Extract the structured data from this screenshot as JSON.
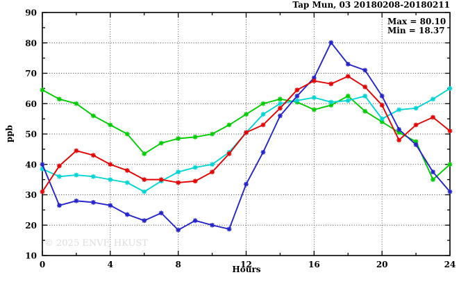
{
  "title": "Tap Mun, 03 20180208-20180211",
  "stats": {
    "max_label": "Max = 80.10",
    "min_label": "Min = 18.37"
  },
  "watermark": "© 2025 ENVF, HKUST",
  "chart_data": {
    "type": "line",
    "title": "Tap Mun, 03 20180208-20180211",
    "xlabel": "Hours",
    "ylabel": "ppb",
    "xlim": [
      0,
      24
    ],
    "ylim": [
      10,
      90
    ],
    "x_major_ticks": [
      0,
      4,
      8,
      12,
      16,
      20,
      24
    ],
    "x_minor_step": 2,
    "y_major_ticks": [
      10,
      20,
      30,
      40,
      50,
      60,
      70,
      80,
      90
    ],
    "y_minor_step": 5,
    "grid": true,
    "legend": "none",
    "max": 80.1,
    "min": 18.37,
    "x": [
      0,
      1,
      2,
      3,
      4,
      5,
      6,
      7,
      8,
      9,
      10,
      11,
      12,
      13,
      14,
      15,
      16,
      17,
      18,
      19,
      20,
      21,
      22,
      23,
      24
    ],
    "series": [
      {
        "name": "day-green",
        "color": "#00cc00",
        "values": [
          64.5,
          61.5,
          60,
          56,
          53,
          50,
          43.5,
          47,
          48.5,
          49,
          50,
          53,
          56.5,
          60,
          61.5,
          60.5,
          58,
          59.5,
          62.5,
          57.5,
          54,
          50.5,
          47.5,
          35,
          40
        ]
      },
      {
        "name": "day-cyan",
        "color": "#00d4d4",
        "values": [
          38.5,
          36,
          36.5,
          36,
          35,
          34,
          31,
          34.5,
          37.5,
          39,
          40,
          44,
          50.5,
          56.5,
          60,
          61,
          62,
          60.5,
          61,
          62.5,
          55,
          58,
          58.5,
          61.5,
          65
        ]
      },
      {
        "name": "day-blue",
        "color": "#2424cc",
        "values": [
          40,
          26.5,
          28,
          27.5,
          26.5,
          23.5,
          21.5,
          24,
          18.4,
          21.5,
          20,
          18.7,
          33.5,
          44,
          56,
          62.5,
          68.5,
          80.1,
          73,
          71,
          62.5,
          51.5,
          46.5,
          37.5,
          31
        ]
      },
      {
        "name": "day-red",
        "color": "#e60000",
        "values": [
          31,
          39.5,
          44.5,
          43,
          40,
          38,
          35,
          35,
          34,
          34.5,
          37.5,
          43.5,
          50.5,
          53,
          58.5,
          64.5,
          67.5,
          66.5,
          69,
          65.5,
          59.5,
          48,
          53,
          55.5,
          51
        ]
      }
    ]
  }
}
